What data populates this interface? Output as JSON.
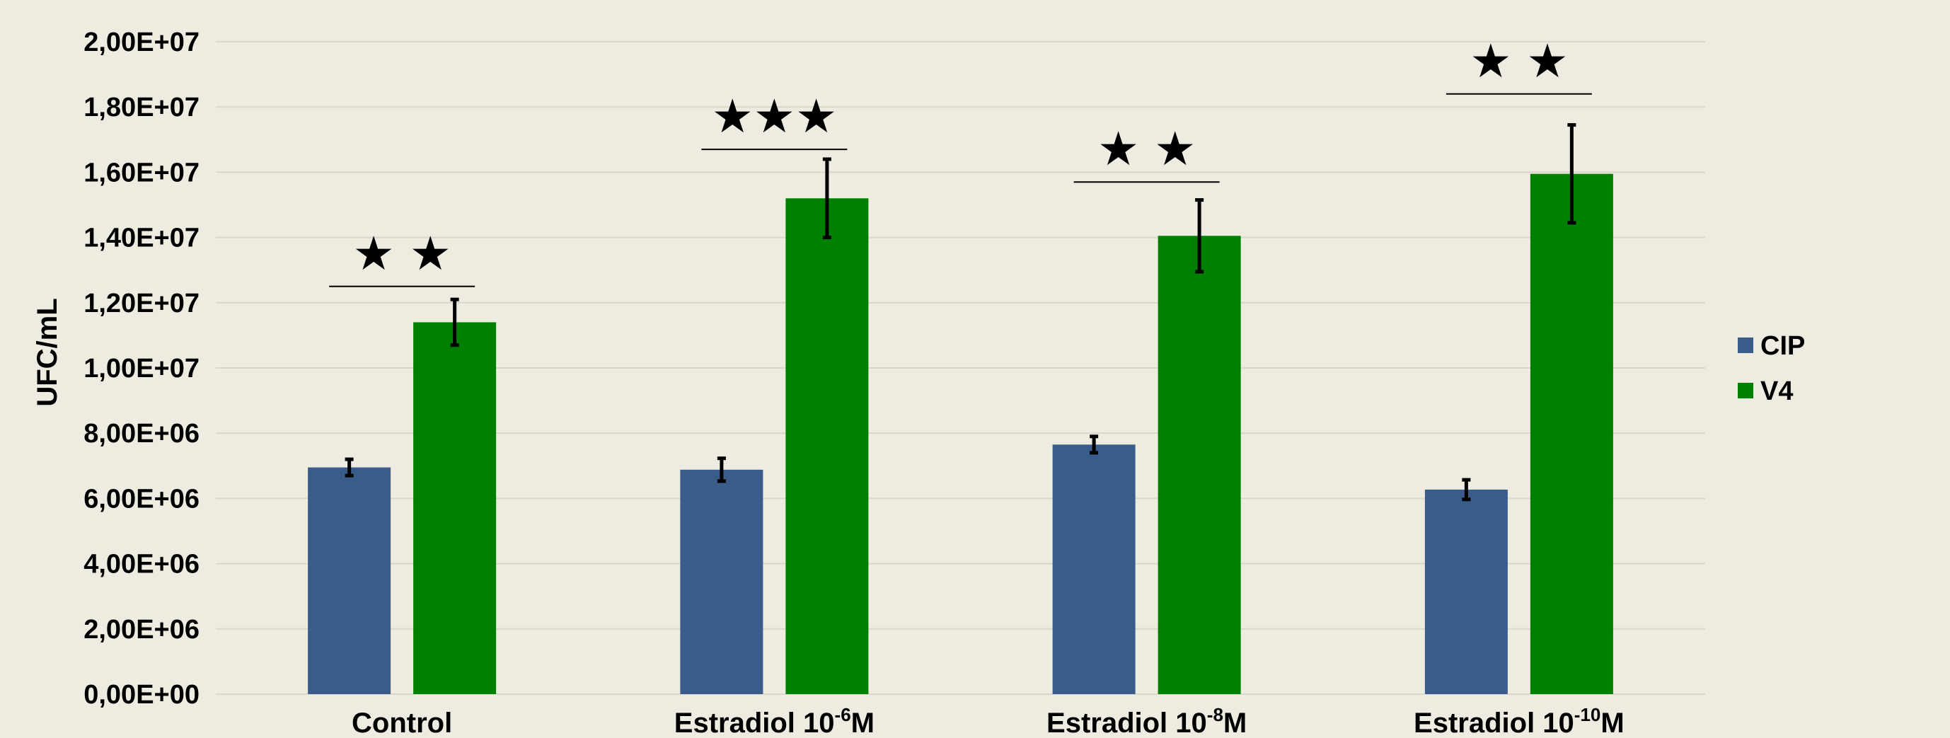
{
  "chart_data": {
    "type": "bar",
    "title": "",
    "ylabel": "UFC/mL",
    "xlabel": "",
    "ylim": [
      0,
      20000000
    ],
    "y_ticks": [
      {
        "value": 0,
        "label": "0,00E+00"
      },
      {
        "value": 2000000,
        "label": "2,00E+06"
      },
      {
        "value": 4000000,
        "label": "4,00E+06"
      },
      {
        "value": 6000000,
        "label": "6,00E+06"
      },
      {
        "value": 8000000,
        "label": "8,00E+06"
      },
      {
        "value": 10000000,
        "label": "1,00E+07"
      },
      {
        "value": 12000000,
        "label": "1,20E+07"
      },
      {
        "value": 14000000,
        "label": "1,40E+07"
      },
      {
        "value": 16000000,
        "label": "1,60E+07"
      },
      {
        "value": 18000000,
        "label": "1,80E+07"
      },
      {
        "value": 20000000,
        "label": "2,00E+07"
      }
    ],
    "grid": true,
    "legend_position": "right",
    "categories": [
      {
        "base": "Control",
        "sup": "",
        "suffix": ""
      },
      {
        "base": "Estradiol 10",
        "sup": "-6",
        "suffix": "M"
      },
      {
        "base": "Estradiol 10",
        "sup": "-8",
        "suffix": "M"
      },
      {
        "base": "Estradiol 10",
        "sup": "-10",
        "suffix": "M"
      }
    ],
    "series": [
      {
        "name": "CIP",
        "color": "#395C8A",
        "values": [
          6950000,
          6880000,
          7650000,
          6270000
        ],
        "errors": [
          250000,
          350000,
          250000,
          300000
        ]
      },
      {
        "name": "V4",
        "color": "#008000",
        "values": [
          11400000,
          15200000,
          14050000,
          15950000
        ],
        "errors": [
          700000,
          1200000,
          1100000,
          1500000
        ]
      }
    ],
    "significance": [
      {
        "category": 0,
        "stars": "★ ★",
        "line_value": 12500000
      },
      {
        "category": 1,
        "stars": "★★★",
        "line_value": 16700000
      },
      {
        "category": 2,
        "stars": "★ ★",
        "line_value": 15700000
      },
      {
        "category": 3,
        "stars": "★ ★",
        "line_value": 18400000
      }
    ]
  }
}
